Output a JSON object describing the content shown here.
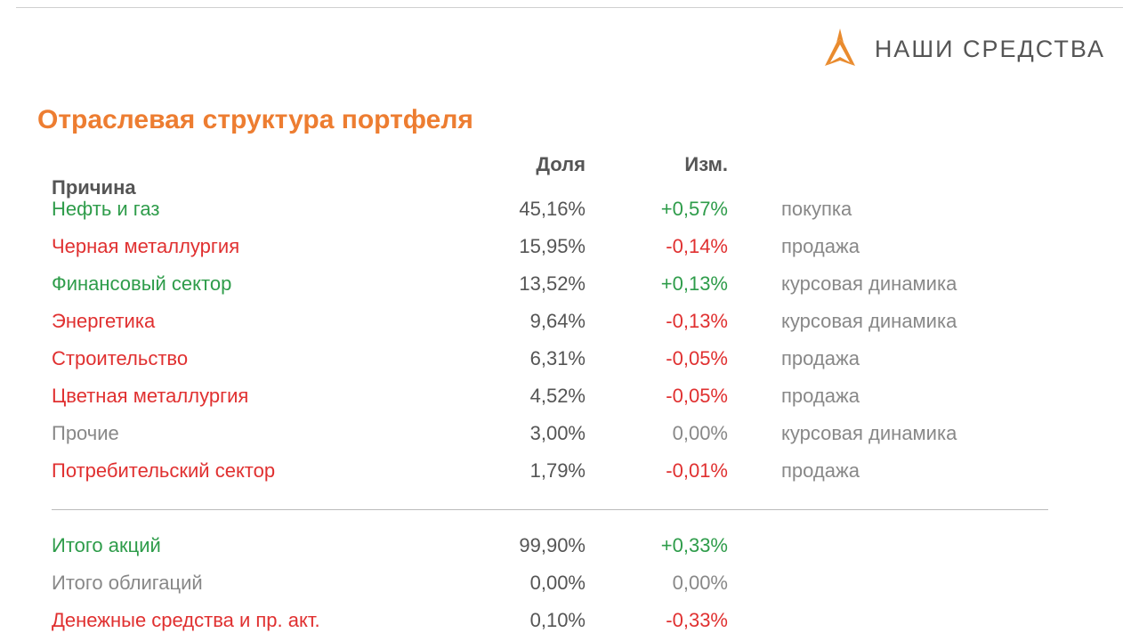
{
  "brand": {
    "name": "НАШИ СРЕДСТВА"
  },
  "title": "Отраслевая структура портфеля",
  "headers": {
    "sector": "",
    "share": "Доля",
    "change": "Изм.",
    "reason": "Причина"
  },
  "colors": {
    "positive": "#2e9c4a",
    "negative": "#e03030",
    "neutral": "#888888",
    "title": "#ed7d31",
    "header_text": "#555555",
    "logo": "#e98b2e"
  },
  "rows": [
    {
      "sector": "Нефть и газ",
      "share": "45,16%",
      "change": "+0,57%",
      "reason": "покупка",
      "sector_color": "green",
      "change_color": "green"
    },
    {
      "sector": "Черная металлургия",
      "share": "15,95%",
      "change": "-0,14%",
      "reason": "продажа",
      "sector_color": "red",
      "change_color": "red"
    },
    {
      "sector": "Финансовый сектор",
      "share": "13,52%",
      "change": "+0,13%",
      "reason": "курсовая динамика",
      "sector_color": "green",
      "change_color": "green"
    },
    {
      "sector": "Энергетика",
      "share": "9,64%",
      "change": "-0,13%",
      "reason": "курсовая динамика",
      "sector_color": "red",
      "change_color": "red"
    },
    {
      "sector": "Строительство",
      "share": "6,31%",
      "change": "-0,05%",
      "reason": "продажа",
      "sector_color": "red",
      "change_color": "red"
    },
    {
      "sector": "Цветная металлургия",
      "share": "4,52%",
      "change": "-0,05%",
      "reason": "продажа",
      "sector_color": "red",
      "change_color": "red"
    },
    {
      "sector": "Прочие",
      "share": "3,00%",
      "change": "0,00%",
      "reason": "курсовая динамика",
      "sector_color": "gray",
      "change_color": "gray"
    },
    {
      "sector": "Потребительский сектор",
      "share": "1,79%",
      "change": "-0,01%",
      "reason": "продажа",
      "sector_color": "red",
      "change_color": "red"
    }
  ],
  "totals": [
    {
      "sector": "Итого акций",
      "share": "99,90%",
      "change": "+0,33%",
      "sector_color": "green",
      "change_color": "green"
    },
    {
      "sector": "Итого облигаций",
      "share": "0,00%",
      "change": "0,00%",
      "sector_color": "gray",
      "change_color": "gray"
    },
    {
      "sector": "Денежные средства и пр. акт.",
      "share": "0,10%",
      "change": "-0,33%",
      "sector_color": "red",
      "change_color": "red"
    }
  ]
}
